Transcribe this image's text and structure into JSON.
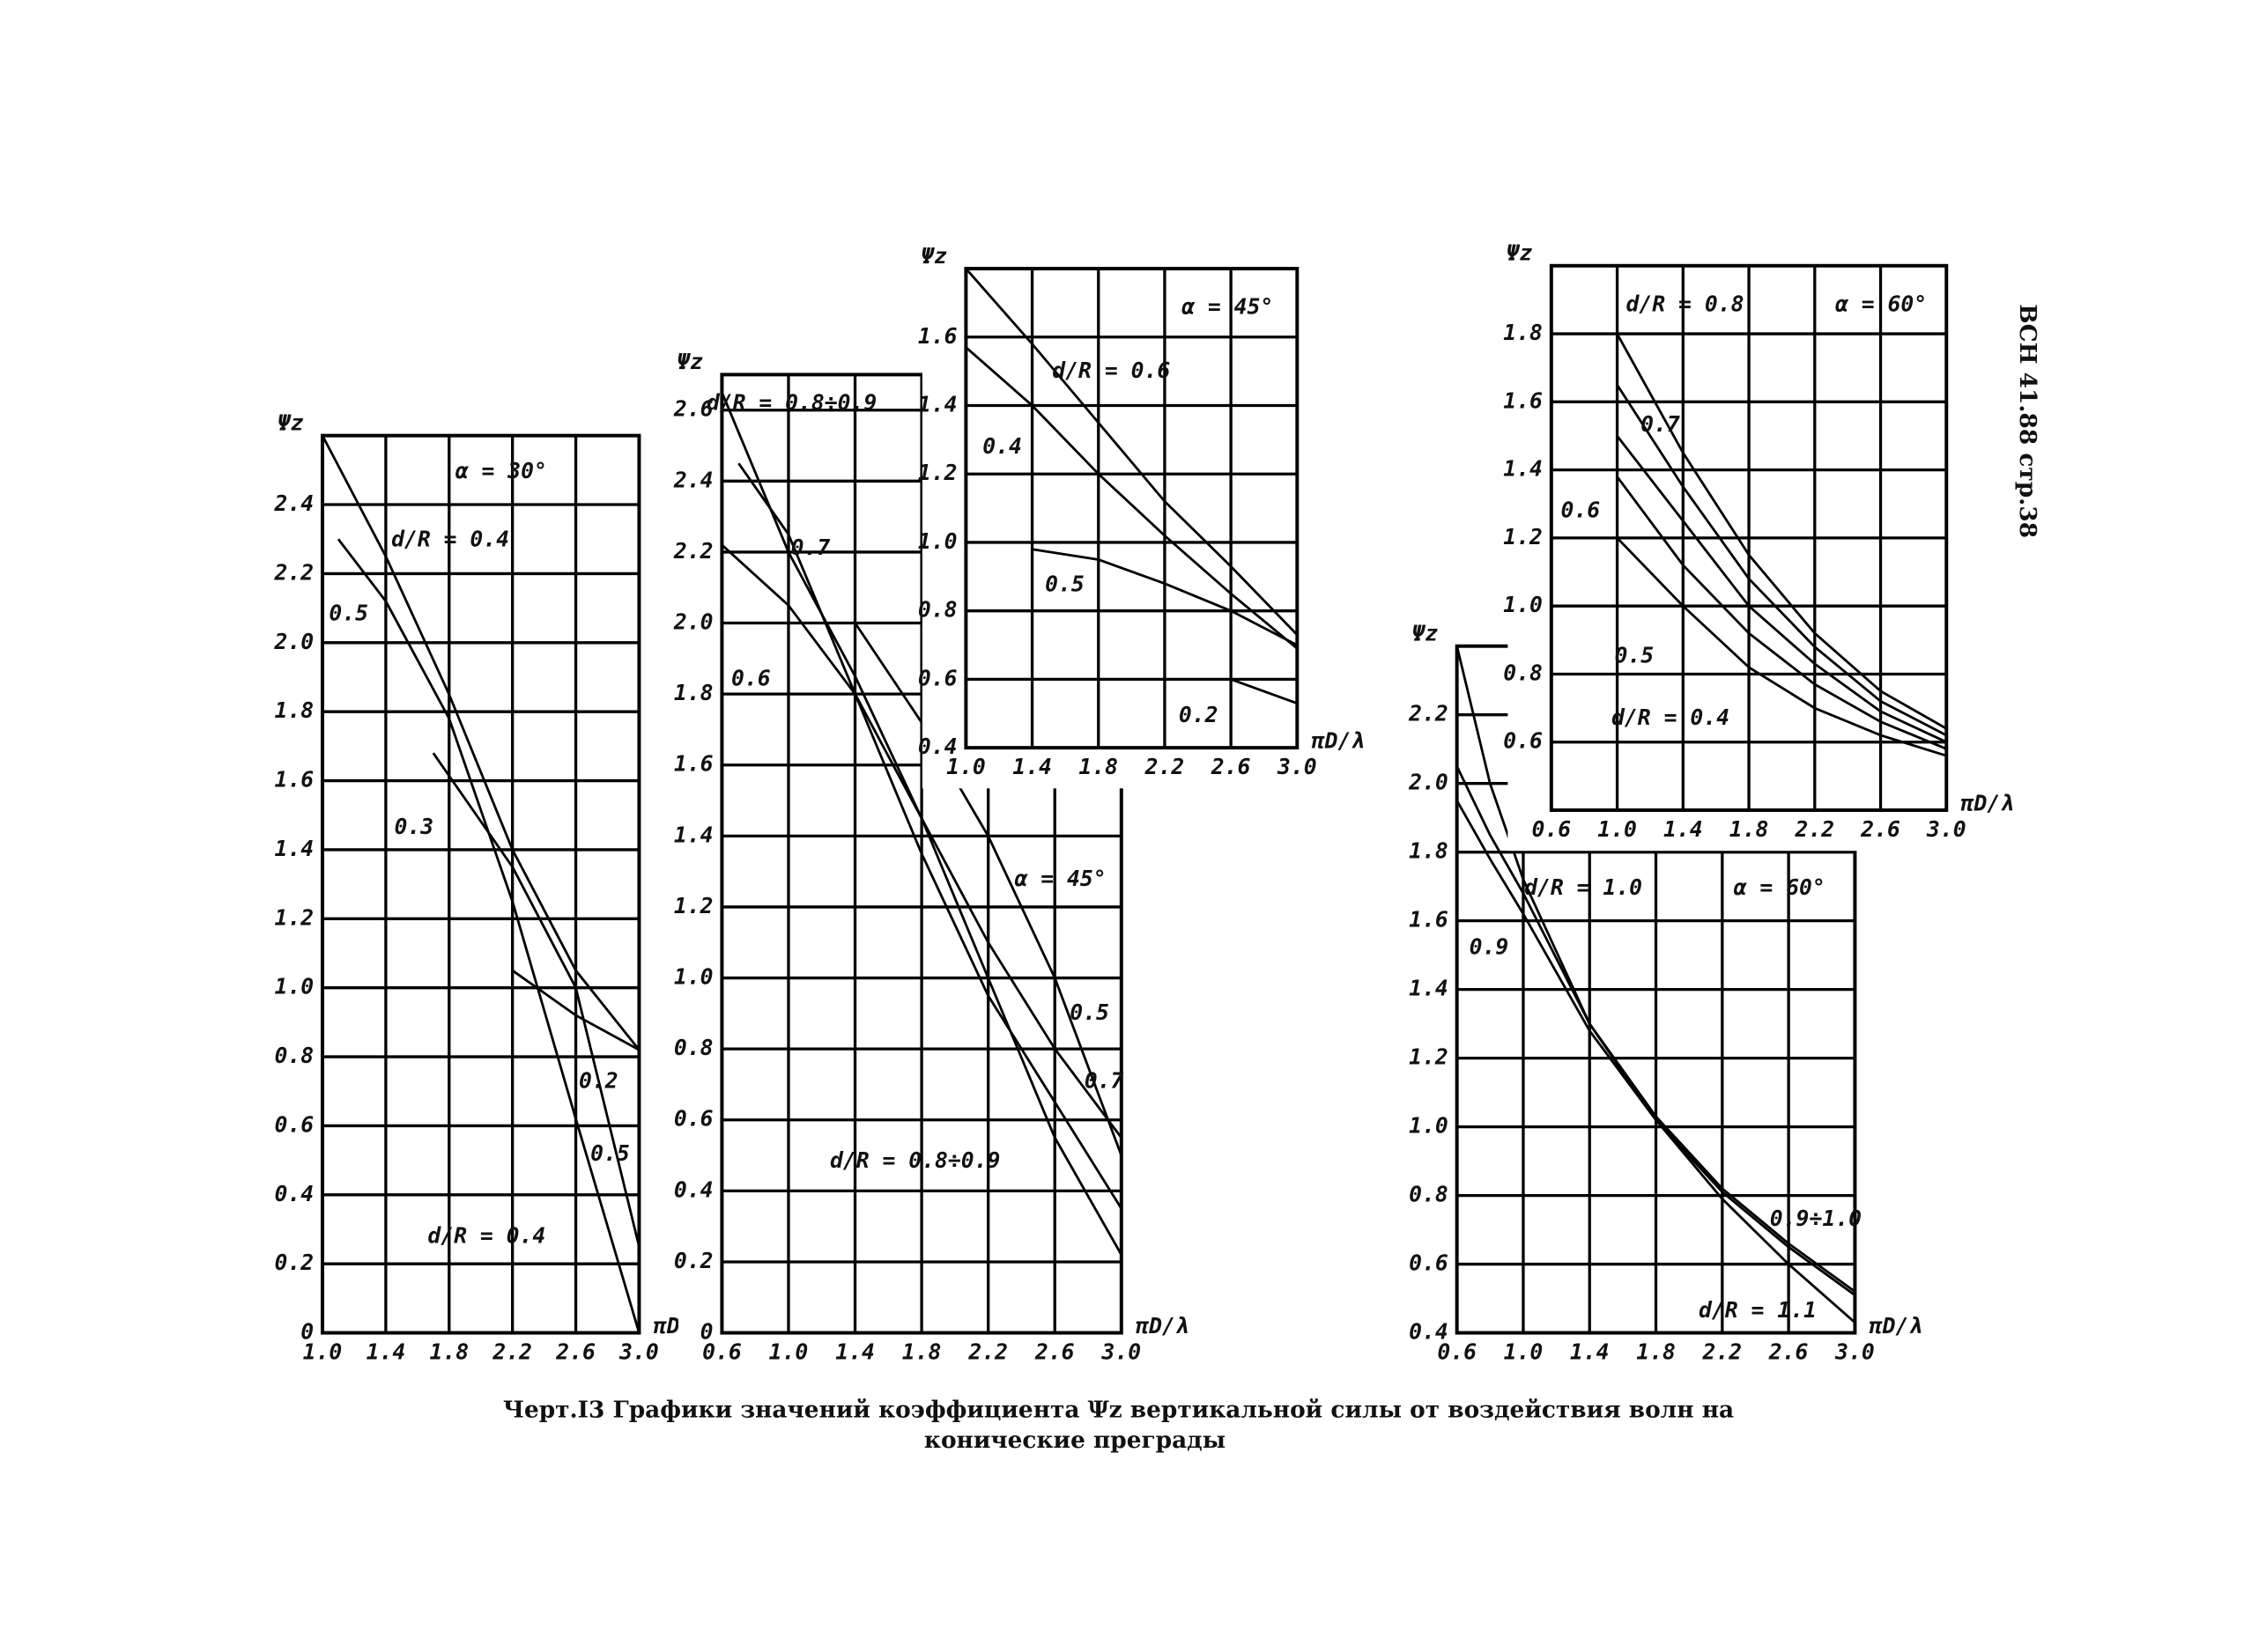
{
  "figure_caption": [
    "Черт.I3 Графики значений коэффициента Ψz вертикальной силы от воздействия волн на",
    "конические преграды"
  ],
  "header_note": "ВСН 41.88 стр.38",
  "chart_data": [
    {
      "type": "line",
      "annotation": "α = 30°",
      "ylabel": "Ψz",
      "xlabel": "πD/λ",
      "grid": true,
      "color": "#000000",
      "xlim": [
        1.0,
        3.0
      ],
      "xticks": [
        {
          "value": 1,
          "label": "1.0"
        },
        1.4,
        1.8,
        2.2,
        2.6,
        {
          "value": 3,
          "label": "3.0"
        }
      ],
      "ylim": [
        0,
        2.6
      ],
      "yticks": [
        0,
        0.2,
        0.4,
        0.6,
        0.8,
        {
          "value": 1,
          "label": "1.0"
        },
        1.2,
        1.4,
        1.6,
        1.8,
        {
          "value": 2,
          "label": "2.0"
        },
        2.2,
        2.4
      ],
      "series": [
        {
          "name": "d/R = 0.4",
          "x": [
            1.1,
            1.4,
            1.8,
            2.2,
            2.6,
            3.0
          ],
          "values": [
            2.3,
            2.12,
            1.78,
            1.25,
            0.62,
            0.0
          ]
        },
        {
          "name": "0.5",
          "x": [
            1.0,
            1.4,
            1.8,
            2.2,
            2.6,
            3.0
          ],
          "values": [
            2.6,
            2.25,
            1.85,
            1.4,
            1.05,
            0.82
          ]
        },
        {
          "name": "0.3",
          "x": [
            1.7,
            2.2,
            2.6,
            3.0
          ],
          "values": [
            1.68,
            1.35,
            1.0,
            0.25
          ]
        },
        {
          "name": "0.2",
          "x": [
            2.2,
            2.6,
            3.0
          ],
          "values": [
            1.05,
            0.92,
            0.82
          ]
        }
      ],
      "extra_labels": [
        "0.5",
        "d/R = 0.4"
      ]
    },
    {
      "type": "line",
      "annotation": "α = 45°",
      "ylabel": "Ψz",
      "xlabel": "πD/λ",
      "grid": true,
      "color": "#000000",
      "xlim": [
        0.6,
        3.0
      ],
      "xticks": [
        0.6,
        {
          "value": 1,
          "label": "1.0"
        },
        1.4,
        1.8,
        2.2,
        2.6,
        {
          "value": 3,
          "label": "3.0"
        }
      ],
      "ylim": [
        0,
        2.7
      ],
      "yticks": [
        0,
        0.2,
        0.4,
        0.6,
        0.8,
        {
          "value": 1,
          "label": "1.0"
        },
        1.2,
        1.4,
        1.6,
        1.8,
        {
          "value": 2,
          "label": "2.0"
        },
        2.2,
        2.4,
        2.6
      ],
      "series": [
        {
          "name": "d/R = 0.8÷0.9",
          "x": [
            0.6,
            1.0,
            1.4,
            1.8,
            2.2,
            2.6,
            3.0
          ],
          "values": [
            2.65,
            2.2,
            1.85,
            1.45,
            1.0,
            0.55,
            0.22
          ]
        },
        {
          "name": "0.7",
          "x": [
            0.7,
            1.0,
            1.4,
            1.8,
            2.2,
            2.6,
            3.0
          ],
          "values": [
            2.45,
            2.25,
            1.8,
            1.35,
            0.95,
            0.65,
            0.35
          ]
        },
        {
          "name": "0.6",
          "x": [
            0.6,
            1.0,
            1.4,
            1.8,
            2.2,
            2.6,
            3.0
          ],
          "values": [
            2.22,
            2.05,
            1.8,
            1.45,
            1.1,
            0.8,
            0.55
          ]
        },
        {
          "name": "0.5",
          "x": [
            1.4,
            1.8,
            2.2,
            2.6,
            3.0
          ],
          "values": [
            2.0,
            1.72,
            1.4,
            1.0,
            0.5
          ]
        }
      ],
      "extra_labels": [
        "0.7",
        "d/R = 0.8÷0.9"
      ]
    },
    {
      "type": "line",
      "annotation": "α = 45°",
      "ylabel": "Ψz",
      "xlabel": "πD/λ",
      "grid": true,
      "color": "#000000",
      "xlim": [
        1.0,
        3.0
      ],
      "xticks": [
        {
          "value": 1,
          "label": "1.0"
        },
        1.4,
        1.8,
        2.2,
        2.6,
        {
          "value": 3,
          "label": "3.0"
        }
      ],
      "ylim": [
        0.4,
        1.8
      ],
      "yticks": [
        0.4,
        0.6,
        0.8,
        {
          "value": 1,
          "label": "1.0"
        },
        1.2,
        1.4,
        1.6
      ],
      "series": [
        {
          "name": "d/R = 0.6",
          "x": [
            1.0,
            1.4,
            1.8,
            2.2,
            2.6,
            3.0
          ],
          "values": [
            1.8,
            1.58,
            1.35,
            1.12,
            0.93,
            0.73
          ]
        },
        {
          "name": "0.4",
          "x": [
            1.0,
            1.4,
            1.8,
            2.2,
            2.6,
            3.0
          ],
          "values": [
            1.57,
            1.4,
            1.2,
            1.02,
            0.85,
            0.69
          ]
        },
        {
          "name": "0.5",
          "x": [
            1.4,
            1.8,
            2.2,
            2.6,
            3.0
          ],
          "values": [
            0.98,
            0.95,
            0.88,
            0.8,
            0.7
          ]
        },
        {
          "name": "0.2",
          "x": [
            2.6,
            3.0
          ],
          "values": [
            0.6,
            0.53
          ]
        }
      ],
      "extra_labels": []
    },
    {
      "type": "line",
      "annotation": "α = 60°",
      "ylabel": "Ψz",
      "xlabel": "πD/λ",
      "grid": true,
      "color": "#000000",
      "xlim": [
        0.6,
        3.0
      ],
      "xticks": [
        0.6,
        {
          "value": 1,
          "label": "1.0"
        },
        1.4,
        1.8,
        2.2,
        2.6,
        {
          "value": 3,
          "label": "3.0"
        }
      ],
      "ylim": [
        0.4,
        2.0
      ],
      "yticks": [
        0.6,
        0.8,
        {
          "value": 1,
          "label": "1.0"
        },
        1.2,
        1.4,
        1.6,
        1.8
      ],
      "series": [
        {
          "name": "d/R = 0.8",
          "x": [
            1.0,
            1.4,
            1.8,
            2.2,
            2.6,
            3.0
          ],
          "values": [
            1.8,
            1.45,
            1.15,
            0.92,
            0.75,
            0.64
          ]
        },
        {
          "name": "0.7",
          "x": [
            1.0,
            1.4,
            1.8,
            2.2,
            2.6,
            3.0
          ],
          "values": [
            1.65,
            1.35,
            1.08,
            0.88,
            0.72,
            0.62
          ]
        },
        {
          "name": "0.6",
          "x": [
            1.0,
            1.4,
            1.8,
            2.2,
            2.6,
            3.0
          ],
          "values": [
            1.5,
            1.25,
            1.0,
            0.83,
            0.69,
            0.6
          ]
        },
        {
          "name": "0.5",
          "x": [
            1.0,
            1.4,
            1.8,
            2.2,
            2.6,
            3.0
          ],
          "values": [
            1.38,
            1.12,
            0.92,
            0.77,
            0.66,
            0.58
          ]
        },
        {
          "name": "d/R = 0.4",
          "x": [
            1.0,
            1.4,
            1.8,
            2.2,
            2.6,
            3.0
          ],
          "values": [
            1.2,
            1.0,
            0.82,
            0.7,
            0.62,
            0.56
          ]
        }
      ],
      "extra_labels": []
    },
    {
      "type": "line",
      "annotation": "α = 60°",
      "ylabel": "Ψz",
      "xlabel": "πD/λ",
      "grid": true,
      "color": "#000000",
      "xlim": [
        0.6,
        3.0
      ],
      "xticks": [
        0.6,
        {
          "value": 1,
          "label": "1.0"
        },
        1.4,
        1.8,
        2.2,
        2.6,
        {
          "value": 3,
          "label": "3.0"
        }
      ],
      "ylim": [
        0.4,
        2.4
      ],
      "yticks": [
        0.4,
        0.6,
        0.8,
        {
          "value": 1,
          "label": "1.0"
        },
        1.2,
        1.4,
        1.6,
        1.8,
        {
          "value": 2,
          "label": "2.0"
        },
        2.2
      ],
      "series": [
        {
          "name": "d/R = 1.0",
          "x": [
            0.6,
            0.8,
            1.0,
            1.4,
            1.8,
            2.2,
            2.6,
            3.0
          ],
          "values": [
            2.05,
            1.85,
            1.68,
            1.3,
            1.03,
            0.82,
            0.66,
            0.52
          ]
        },
        {
          "name": "0.9",
          "x": [
            0.6,
            0.8,
            1.0,
            1.4,
            1.8,
            2.2,
            2.6,
            3.0
          ],
          "values": [
            1.95,
            1.78,
            1.62,
            1.28,
            1.02,
            0.81,
            0.65,
            0.51
          ]
        },
        {
          "name": "d/R = 1.1",
          "x": [
            0.6,
            0.8,
            1.0,
            1.4,
            1.8,
            2.2,
            2.6,
            3.0
          ],
          "values": [
            2.4,
            2.0,
            1.72,
            1.3,
            1.02,
            0.79,
            0.6,
            0.43
          ]
        }
      ],
      "extra_labels": [
        "0.9÷1.0"
      ]
    }
  ]
}
